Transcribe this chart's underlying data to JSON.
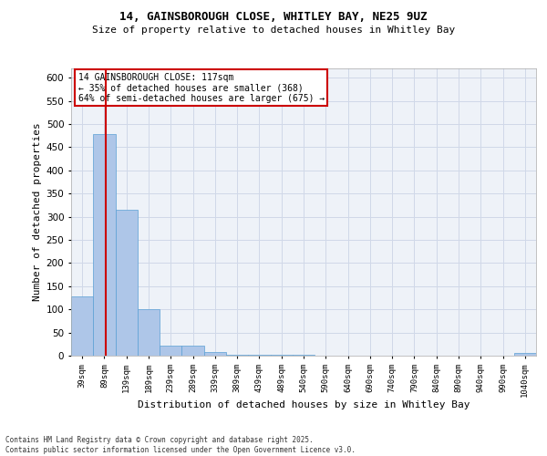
{
  "title_line1": "14, GAINSBOROUGH CLOSE, WHITLEY BAY, NE25 9UZ",
  "title_line2": "Size of property relative to detached houses in Whitley Bay",
  "xlabel": "Distribution of detached houses by size in Whitley Bay",
  "ylabel": "Number of detached properties",
  "bar_labels": [
    "39sqm",
    "89sqm",
    "139sqm",
    "189sqm",
    "239sqm",
    "289sqm",
    "339sqm",
    "389sqm",
    "439sqm",
    "489sqm",
    "540sqm",
    "590sqm",
    "640sqm",
    "690sqm",
    "740sqm",
    "790sqm",
    "840sqm",
    "890sqm",
    "940sqm",
    "990sqm",
    "1040sqm"
  ],
  "bar_values": [
    128,
    478,
    315,
    100,
    22,
    22,
    8,
    2,
    2,
    2,
    2,
    0,
    0,
    0,
    0,
    0,
    0,
    0,
    0,
    0,
    5
  ],
  "bar_color": "#aec6e8",
  "bar_edgecolor": "#5a9fd4",
  "grid_color": "#d0d8e8",
  "background_color": "#eef2f8",
  "vline_color": "#cc0000",
  "ylim": [
    0,
    620
  ],
  "yticks": [
    0,
    50,
    100,
    150,
    200,
    250,
    300,
    350,
    400,
    450,
    500,
    550,
    600
  ],
  "legend_title": "14 GAINSBOROUGH CLOSE: 117sqm",
  "legend_line1": "← 35% of detached houses are smaller (368)",
  "legend_line2": "64% of semi-detached houses are larger (675) →",
  "legend_edgecolor": "#cc0000",
  "footnote_line1": "Contains HM Land Registry data © Crown copyright and database right 2025.",
  "footnote_line2": "Contains public sector information licensed under the Open Government Licence v3.0."
}
